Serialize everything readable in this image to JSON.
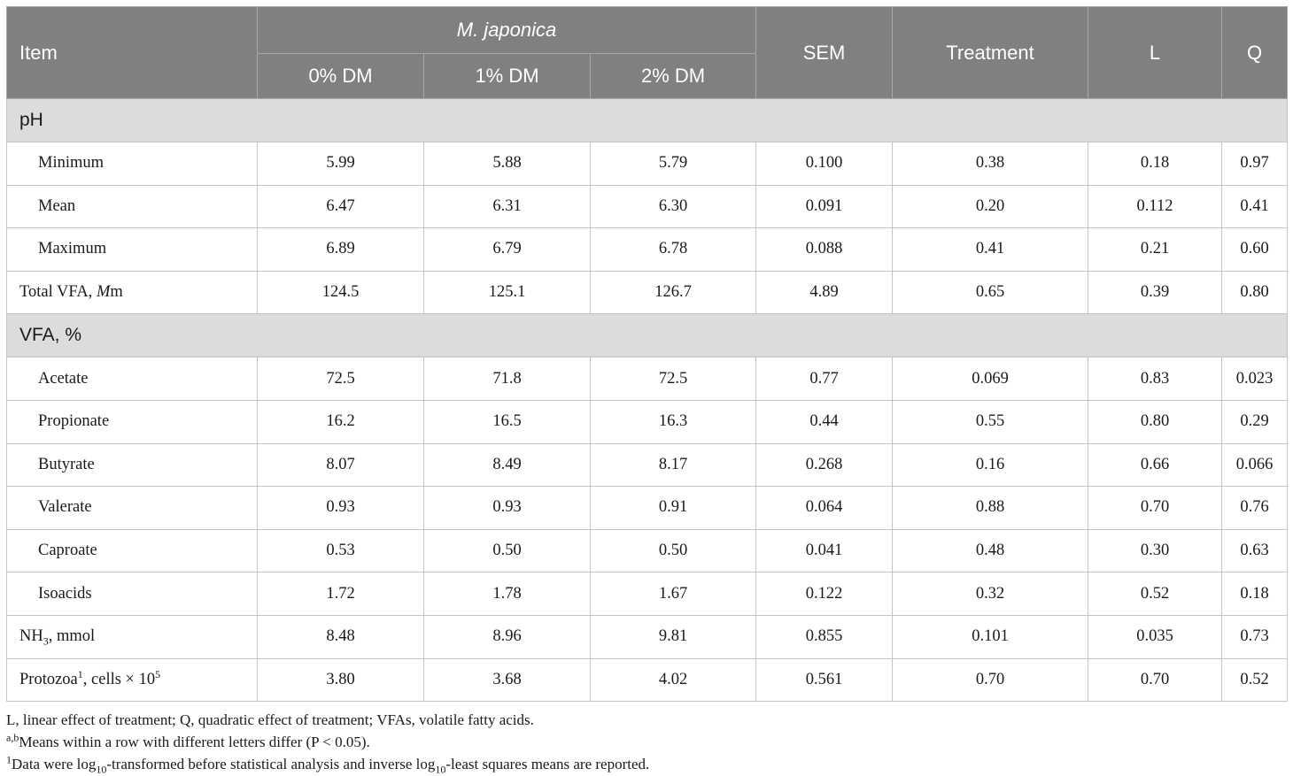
{
  "header": {
    "item": "Item",
    "group": "M. japonica",
    "levels": [
      "0% DM",
      "1% DM",
      "2% DM"
    ],
    "sem": "SEM",
    "treatment": "Treatment",
    "l": "L",
    "q": "Q"
  },
  "sections": {
    "ph": "pH",
    "vfa_pct": "VFA, %"
  },
  "rows": {
    "minimum": {
      "label": "Minimum",
      "values": [
        "5.99",
        "5.88",
        "5.79",
        "0.100",
        "0.38",
        "0.18",
        "0.97"
      ]
    },
    "mean": {
      "label": "Mean",
      "values": [
        "6.47",
        "6.31",
        "6.30",
        "0.091",
        "0.20",
        "0.112",
        "0.41"
      ]
    },
    "maximum": {
      "label": "Maximum",
      "values": [
        "6.89",
        "6.79",
        "6.78",
        "0.088",
        "0.41",
        "0.21",
        "0.60"
      ]
    },
    "total_vfa": {
      "label_pre": "Total VFA, ",
      "label_italic": "M",
      "label_post": "m",
      "values": [
        "124.5",
        "125.1",
        "126.7",
        "4.89",
        "0.65",
        "0.39",
        "0.80"
      ]
    },
    "acetate": {
      "label": "Acetate",
      "values": [
        "72.5",
        "71.8",
        "72.5",
        "0.77",
        "0.069",
        "0.83",
        "0.023"
      ]
    },
    "propionate": {
      "label": "Propionate",
      "values": [
        "16.2",
        "16.5",
        "16.3",
        "0.44",
        "0.55",
        "0.80",
        "0.29"
      ]
    },
    "butyrate": {
      "label": "Butyrate",
      "values": [
        "8.07",
        "8.49",
        "8.17",
        "0.268",
        "0.16",
        "0.66",
        "0.066"
      ]
    },
    "valerate": {
      "label": "Valerate",
      "values": [
        "0.93",
        "0.93",
        "0.91",
        "0.064",
        "0.88",
        "0.70",
        "0.76"
      ]
    },
    "caproate": {
      "label": "Caproate",
      "values": [
        "0.53",
        "0.50",
        "0.50",
        "0.041",
        "0.48",
        "0.30",
        "0.63"
      ]
    },
    "isoacids": {
      "label": "Isoacids",
      "values": [
        "1.72",
        "1.78",
        "1.67",
        "0.122",
        "0.32",
        "0.52",
        "0.18"
      ]
    },
    "nh3": {
      "label_pre": "NH",
      "label_sub": "3",
      "label_post": ", mmol",
      "values": [
        "8.48",
        "8.96",
        "9.81",
        "0.855",
        "0.101",
        "0.035",
        "0.73"
      ]
    },
    "protozoa": {
      "label_pre": "Protozoa",
      "label_sup1": "1",
      "label_mid": ", cells × 10",
      "label_sup2": "5",
      "values": [
        "3.80",
        "3.68",
        "4.02",
        "0.561",
        "0.70",
        "0.70",
        "0.52"
      ]
    }
  },
  "footnotes": {
    "abbrev": "L, linear effect of treatment; Q, quadratic effect of treatment; VFAs, volatile fatty acids.",
    "ab_sup": "a,b",
    "ab_text": "Means within a row with different letters differ (P < 0.05).",
    "n1_sup": "1",
    "n1_a": "Data were log",
    "n1_sub1": "10",
    "n1_b": "-transformed before statistical analysis and inverse log",
    "n1_sub2": "10",
    "n1_c": "-least squares means are reported."
  }
}
